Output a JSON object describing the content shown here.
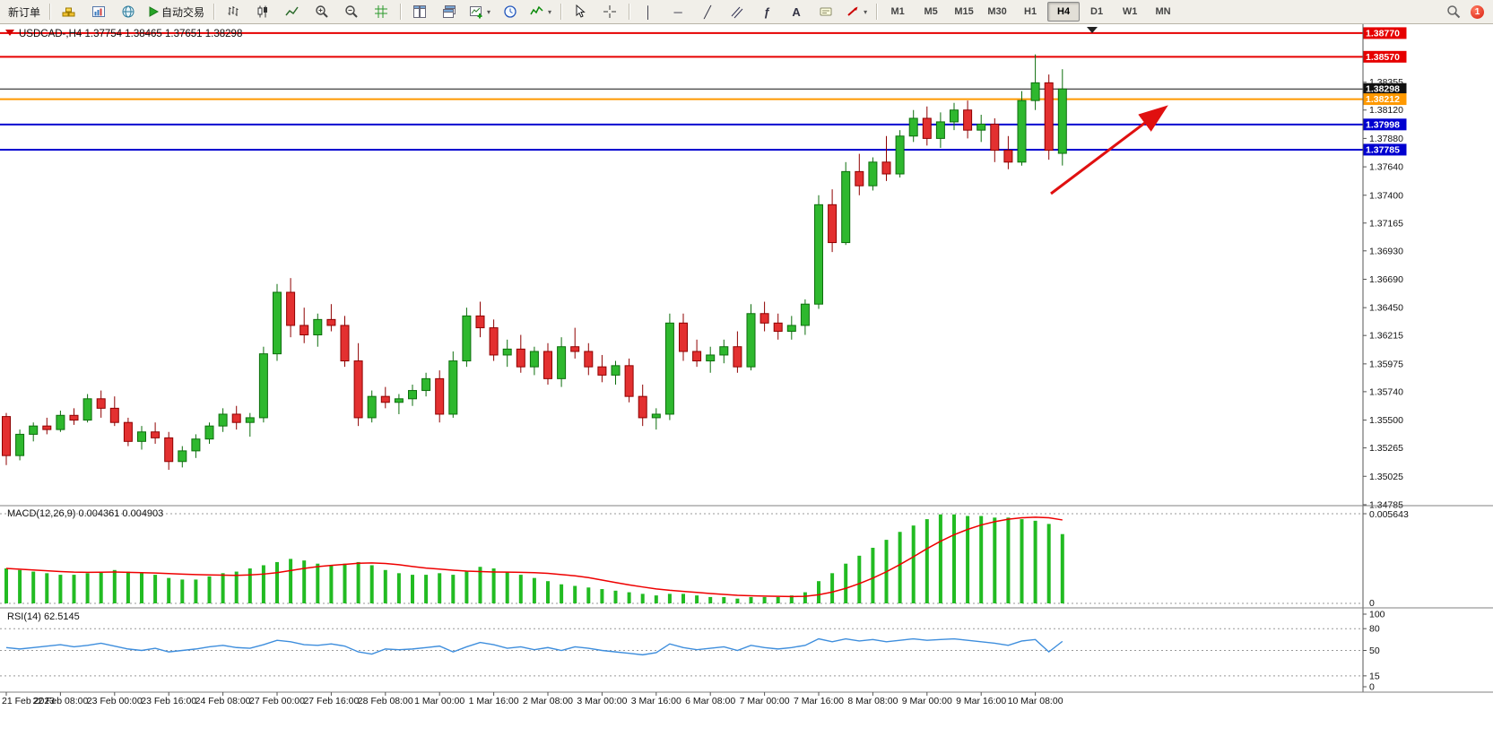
{
  "toolbar": {
    "new_order": "新订单",
    "autotrading": "自动交易",
    "timeframes": [
      "M1",
      "M5",
      "M15",
      "M30",
      "H1",
      "H4",
      "D1",
      "W1",
      "MN"
    ],
    "active_timeframe": "H4",
    "notification_count": "1"
  },
  "icons": {
    "caret": "▾",
    "vertical_line": "│",
    "horizontal_line": "─",
    "trendline": "╱",
    "fibonacci": "ƒ",
    "text_tool": "A"
  },
  "chart_data": {
    "type": "candlestick",
    "info": {
      "symbol_period": "USDCAD-,H4",
      "open": "1.37754",
      "high": "1.38465",
      "low": "1.37651",
      "close": "1.38298"
    },
    "ylim": [
      1.34785,
      1.3883
    ],
    "price_axis_ticks": [
      "1.38355",
      "1.38120",
      "1.37880",
      "1.37640",
      "1.37400",
      "1.37165",
      "1.36930",
      "1.36690",
      "1.36450",
      "1.36215",
      "1.35975",
      "1.35740",
      "1.35500",
      "1.35265",
      "1.35025",
      "1.34785"
    ],
    "price_markers": [
      {
        "price": 1.3877,
        "label": "1.38770",
        "color": "#e60000",
        "width": 2
      },
      {
        "price": 1.3857,
        "label": "1.38570",
        "color": "#e60000",
        "width": 2
      },
      {
        "price": 1.38298,
        "label": "1.38298",
        "color": "#111111",
        "width": 1
      },
      {
        "price": 1.38212,
        "label": "1.38212",
        "color": "#ff9900",
        "width": 2
      },
      {
        "price": 1.37998,
        "label": "1.37998",
        "color": "#0000d0",
        "width": 2
      },
      {
        "price": 1.37785,
        "label": "1.37785",
        "color": "#0000d0",
        "width": 2
      }
    ],
    "candles": [
      [
        1.3553,
        1.3556,
        1.3512,
        1.352
      ],
      [
        1.352,
        1.3542,
        1.3516,
        1.3538
      ],
      [
        1.3538,
        1.3548,
        1.3532,
        1.3545
      ],
      [
        1.3545,
        1.3552,
        1.3538,
        1.3542
      ],
      [
        1.3542,
        1.3558,
        1.354,
        1.3554
      ],
      [
        1.3554,
        1.356,
        1.3546,
        1.355
      ],
      [
        1.355,
        1.3572,
        1.3548,
        1.3568
      ],
      [
        1.3568,
        1.3575,
        1.3552,
        1.356
      ],
      [
        1.356,
        1.357,
        1.3545,
        1.3548
      ],
      [
        1.3548,
        1.3552,
        1.3528,
        1.3532
      ],
      [
        1.3532,
        1.3545,
        1.3525,
        1.354
      ],
      [
        1.354,
        1.3548,
        1.353,
        1.3535
      ],
      [
        1.3535,
        1.354,
        1.3508,
        1.3515
      ],
      [
        1.3515,
        1.3528,
        1.351,
        1.3524
      ],
      [
        1.3524,
        1.3538,
        1.3518,
        1.3534
      ],
      [
        1.3534,
        1.3548,
        1.353,
        1.3545
      ],
      [
        1.3545,
        1.356,
        1.354,
        1.3555
      ],
      [
        1.3555,
        1.3562,
        1.3542,
        1.3548
      ],
      [
        1.3548,
        1.3556,
        1.3536,
        1.3552
      ],
      [
        1.3552,
        1.3612,
        1.3548,
        1.3606
      ],
      [
        1.3606,
        1.3665,
        1.36,
        1.3658
      ],
      [
        1.3658,
        1.367,
        1.362,
        1.363
      ],
      [
        1.363,
        1.3645,
        1.3615,
        1.3622
      ],
      [
        1.3622,
        1.364,
        1.3612,
        1.3635
      ],
      [
        1.3635,
        1.3648,
        1.3625,
        1.363
      ],
      [
        1.363,
        1.3638,
        1.3595,
        1.36
      ],
      [
        1.36,
        1.3615,
        1.3545,
        1.3552
      ],
      [
        1.3552,
        1.3575,
        1.3548,
        1.357
      ],
      [
        1.357,
        1.3578,
        1.356,
        1.3565
      ],
      [
        1.3565,
        1.3572,
        1.3555,
        1.3568
      ],
      [
        1.3568,
        1.358,
        1.3562,
        1.3575
      ],
      [
        1.3575,
        1.359,
        1.357,
        1.3585
      ],
      [
        1.3585,
        1.3592,
        1.3548,
        1.3555
      ],
      [
        1.3555,
        1.3608,
        1.3552,
        1.36
      ],
      [
        1.36,
        1.3645,
        1.3595,
        1.3638
      ],
      [
        1.3638,
        1.365,
        1.362,
        1.3628
      ],
      [
        1.3628,
        1.3635,
        1.36,
        1.3605
      ],
      [
        1.3605,
        1.3618,
        1.3595,
        1.361
      ],
      [
        1.361,
        1.3622,
        1.359,
        1.3595
      ],
      [
        1.3595,
        1.3612,
        1.3588,
        1.3608
      ],
      [
        1.3608,
        1.3615,
        1.358,
        1.3585
      ],
      [
        1.3585,
        1.362,
        1.3578,
        1.3612
      ],
      [
        1.3612,
        1.3628,
        1.3602,
        1.3608
      ],
      [
        1.3608,
        1.3615,
        1.3588,
        1.3595
      ],
      [
        1.3595,
        1.3605,
        1.3582,
        1.3588
      ],
      [
        1.3588,
        1.36,
        1.358,
        1.3596
      ],
      [
        1.3596,
        1.3602,
        1.3565,
        1.357
      ],
      [
        1.357,
        1.358,
        1.3545,
        1.3552
      ],
      [
        1.3552,
        1.356,
        1.3542,
        1.3555
      ],
      [
        1.3555,
        1.364,
        1.355,
        1.3632
      ],
      [
        1.3632,
        1.364,
        1.36,
        1.3608
      ],
      [
        1.3608,
        1.3618,
        1.3595,
        1.36
      ],
      [
        1.36,
        1.3612,
        1.359,
        1.3605
      ],
      [
        1.3605,
        1.3618,
        1.3598,
        1.3612
      ],
      [
        1.3612,
        1.3625,
        1.359,
        1.3595
      ],
      [
        1.3595,
        1.3648,
        1.3592,
        1.364
      ],
      [
        1.364,
        1.365,
        1.3625,
        1.3632
      ],
      [
        1.3632,
        1.364,
        1.3618,
        1.3625
      ],
      [
        1.3625,
        1.3638,
        1.3618,
        1.363
      ],
      [
        1.363,
        1.3652,
        1.3622,
        1.3648
      ],
      [
        1.3648,
        1.374,
        1.3644,
        1.3732
      ],
      [
        1.3732,
        1.3745,
        1.3692,
        1.37
      ],
      [
        1.37,
        1.3768,
        1.3698,
        1.376
      ],
      [
        1.376,
        1.3775,
        1.374,
        1.3748
      ],
      [
        1.3748,
        1.3772,
        1.3744,
        1.3768
      ],
      [
        1.3768,
        1.379,
        1.3752,
        1.3758
      ],
      [
        1.3758,
        1.3795,
        1.3755,
        1.379
      ],
      [
        1.379,
        1.3812,
        1.3785,
        1.3805
      ],
      [
        1.3805,
        1.3815,
        1.3782,
        1.3788
      ],
      [
        1.3788,
        1.381,
        1.378,
        1.3802
      ],
      [
        1.3802,
        1.3818,
        1.3795,
        1.3812
      ],
      [
        1.3812,
        1.382,
        1.3788,
        1.3795
      ],
      [
        1.3795,
        1.3808,
        1.3785,
        1.38
      ],
      [
        1.38,
        1.3805,
        1.3768,
        1.3778
      ],
      [
        1.3778,
        1.379,
        1.3762,
        1.3768
      ],
      [
        1.3768,
        1.3828,
        1.3765,
        1.382
      ],
      [
        1.382,
        1.3859,
        1.3812,
        1.3835
      ],
      [
        1.3835,
        1.3842,
        1.377,
        1.3778
      ],
      [
        1.37754,
        1.38465,
        1.37651,
        1.38298
      ]
    ],
    "time_labels": [
      "21 Feb 2023",
      "22 Feb 08:00",
      "23 Feb 00:00",
      "23 Feb 16:00",
      "24 Feb 08:00",
      "27 Feb 00:00",
      "27 Feb 16:00",
      "28 Feb 08:00",
      "1 Mar 00:00",
      "1 Mar 16:00",
      "2 Mar 08:00",
      "3 Mar 00:00",
      "3 Mar 16:00",
      "6 Mar 08:00",
      "7 Mar 00:00",
      "7 Mar 16:00",
      "8 Mar 08:00",
      "9 Mar 00:00",
      "9 Mar 16:00",
      "10 Mar 08:00"
    ],
    "macd": {
      "label": "MACD(12,26,9)",
      "value_main": "0.004361",
      "value_signal": "0.004903",
      "axis_max": 0.005643,
      "axis_max_label": "0.005643",
      "axis_min_label": "0",
      "histogram": [
        0.0022,
        0.0021,
        0.002,
        0.0019,
        0.0018,
        0.0018,
        0.0019,
        0.002,
        0.0021,
        0.002,
        0.0019,
        0.0018,
        0.0016,
        0.0015,
        0.0015,
        0.0017,
        0.0019,
        0.002,
        0.0022,
        0.0024,
        0.0026,
        0.0028,
        0.0027,
        0.0025,
        0.0024,
        0.0025,
        0.0026,
        0.0024,
        0.0021,
        0.0019,
        0.0018,
        0.0018,
        0.0019,
        0.0018,
        0.002,
        0.0023,
        0.0022,
        0.002,
        0.0018,
        0.0016,
        0.0014,
        0.0012,
        0.0011,
        0.001,
        0.0009,
        0.0008,
        0.0007,
        0.0006,
        0.0005,
        0.0006,
        0.0006,
        0.0005,
        0.0004,
        0.0004,
        0.0003,
        0.0004,
        0.0004,
        0.0004,
        0.0005,
        0.0007,
        0.0014,
        0.0019,
        0.0025,
        0.003,
        0.0035,
        0.004,
        0.0045,
        0.0049,
        0.0053,
        0.0056,
        0.0056,
        0.0055,
        0.0055,
        0.0054,
        0.0054,
        0.0053,
        0.0052,
        0.005,
        0.004361
      ]
    },
    "rsi": {
      "label": "RSI(14)",
      "value": "62.5145",
      "axis_labels": [
        "100",
        "80",
        "50",
        "15",
        "0"
      ],
      "levels": [
        80,
        50,
        15
      ],
      "series": [
        54,
        52,
        54,
        56,
        58,
        55,
        57,
        60,
        56,
        52,
        50,
        53,
        48,
        50,
        52,
        55,
        57,
        54,
        53,
        58,
        64,
        62,
        58,
        57,
        59,
        56,
        48,
        45,
        52,
        51,
        52,
        54,
        56,
        48,
        55,
        61,
        58,
        53,
        55,
        51,
        54,
        50,
        55,
        53,
        50,
        48,
        46,
        44,
        47,
        59,
        54,
        51,
        53,
        55,
        50,
        57,
        54,
        52,
        54,
        57,
        66,
        62,
        66,
        63,
        65,
        62,
        64,
        66,
        64,
        65,
        66,
        64,
        62,
        60,
        57,
        63,
        65,
        48,
        62.5
      ]
    },
    "annotations": [
      {
        "type": "arrow",
        "from": [
          1172,
          189
        ],
        "to": [
          1298,
          94
        ]
      }
    ],
    "colors": {
      "up": "#2eb82e",
      "up_border": "#0d6e0d",
      "down": "#e33030",
      "down_border": "#8f0000",
      "macd_hist": "#22bb22",
      "macd_signal": "#ee0000",
      "rsi_line": "#3e8edd",
      "arrow": "#e01010"
    }
  }
}
